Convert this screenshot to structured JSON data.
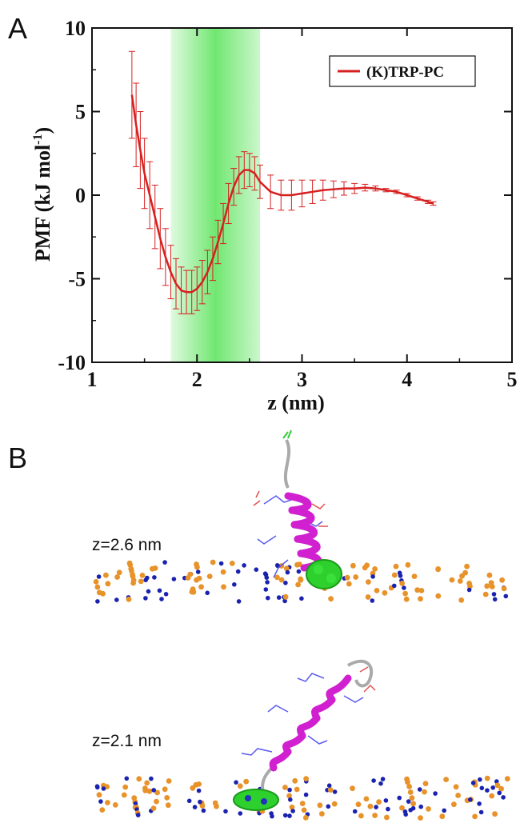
{
  "panels": {
    "a_label": "A",
    "b_label": "B"
  },
  "chart_data": {
    "type": "line",
    "xlabel": "z (nm)",
    "ylabel_main": "PMF (kJ mol",
    "ylabel_sup": "-1",
    "ylabel_end": ")",
    "xlim": [
      1,
      5
    ],
    "ylim": [
      -10,
      10
    ],
    "x_ticks": [
      1,
      2,
      3,
      4,
      5
    ],
    "y_ticks": [
      -10,
      -5,
      0,
      5,
      10
    ],
    "legend_position": "top-right",
    "highlight_band": {
      "x_start": 1.75,
      "x_end": 2.6,
      "color": "#33dd33"
    },
    "series": [
      {
        "name": "(K)TRP-PC",
        "color": "#d62020",
        "x": [
          1.38,
          1.42,
          1.46,
          1.5,
          1.55,
          1.6,
          1.65,
          1.7,
          1.75,
          1.8,
          1.85,
          1.9,
          1.95,
          2.0,
          2.05,
          2.1,
          2.15,
          2.2,
          2.25,
          2.3,
          2.35,
          2.4,
          2.45,
          2.5,
          2.55,
          2.6,
          2.7,
          2.8,
          2.9,
          3.0,
          3.1,
          3.2,
          3.3,
          3.4,
          3.5,
          3.6,
          3.7,
          3.8,
          3.9,
          4.0,
          4.1,
          4.2,
          4.25
        ],
        "y": [
          6.0,
          4.2,
          2.7,
          1.3,
          0.0,
          -1.3,
          -2.6,
          -3.7,
          -4.6,
          -5.3,
          -5.7,
          -5.8,
          -5.8,
          -5.6,
          -5.2,
          -4.6,
          -3.8,
          -2.8,
          -1.7,
          -0.5,
          0.5,
          1.2,
          1.5,
          1.5,
          1.3,
          0.8,
          0.2,
          0.0,
          0.0,
          0.1,
          0.2,
          0.3,
          0.35,
          0.4,
          0.4,
          0.45,
          0.4,
          0.3,
          0.2,
          0.0,
          -0.2,
          -0.4,
          -0.5
        ],
        "err": [
          2.6,
          2.5,
          2.3,
          2.1,
          2.0,
          1.9,
          1.8,
          1.7,
          1.6,
          1.5,
          1.4,
          1.3,
          1.3,
          1.3,
          1.3,
          1.3,
          1.3,
          1.3,
          1.2,
          1.2,
          1.1,
          1.1,
          1.1,
          1.0,
          1.0,
          1.0,
          1.0,
          0.9,
          0.9,
          0.8,
          0.7,
          0.6,
          0.5,
          0.4,
          0.3,
          0.2,
          0.15,
          0.1,
          0.1,
          0.1,
          0.1,
          0.1,
          0.1
        ]
      }
    ]
  },
  "structures": [
    {
      "label": "z=2.6 nm"
    },
    {
      "label": "z=2.1 nm"
    }
  ]
}
